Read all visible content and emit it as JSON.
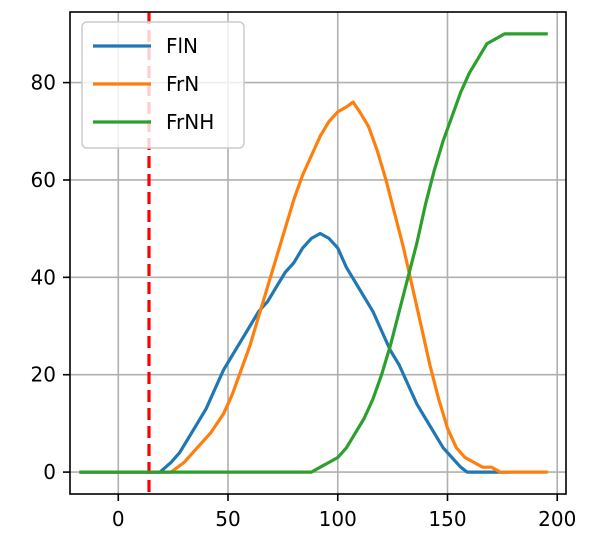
{
  "chart_data": {
    "type": "line",
    "title": "",
    "xlabel": "",
    "ylabel": "",
    "xlim": [
      -22,
      204
    ],
    "ylim": [
      -4.5,
      94.5
    ],
    "xticks": [
      0,
      50,
      100,
      150,
      200
    ],
    "yticks": [
      0,
      20,
      40,
      60,
      80
    ],
    "grid": true,
    "legend_position": "top-left",
    "vline": {
      "x": 14,
      "color": "#ff0000",
      "style": "dashed"
    },
    "series": [
      {
        "name": "FlN",
        "color": "#1f77b4",
        "x": [
          -17,
          19,
          24,
          28,
          32,
          36,
          40,
          44,
          48,
          52,
          56,
          60,
          64,
          68,
          72,
          76,
          80,
          84,
          88,
          92,
          96,
          100,
          104,
          108,
          112,
          116,
          120,
          124,
          128,
          132,
          136,
          140,
          144,
          148,
          152,
          156,
          159,
          178
        ],
        "values": [
          0,
          0,
          2,
          4,
          7,
          10,
          13,
          17,
          21,
          24,
          27,
          30,
          33,
          35,
          38,
          41,
          43,
          46,
          48,
          49,
          48,
          46,
          42,
          39,
          36,
          33,
          29,
          25,
          22,
          18,
          14,
          11,
          8,
          5,
          3,
          1,
          0,
          0
        ]
      },
      {
        "name": "FrN",
        "color": "#ff7f0e",
        "x": [
          -17,
          24,
          30,
          36,
          42,
          48,
          52,
          56,
          60,
          64,
          68,
          72,
          76,
          80,
          84,
          88,
          92,
          96,
          100,
          104,
          107,
          110,
          114,
          118,
          122,
          126,
          130,
          134,
          138,
          142,
          146,
          150,
          154,
          158,
          162,
          166,
          170,
          174,
          178,
          195
        ],
        "values": [
          0,
          0,
          2,
          5,
          8,
          12,
          16,
          21,
          26,
          32,
          38,
          44,
          50,
          56,
          61,
          65,
          69,
          72,
          74,
          75,
          76,
          74,
          71,
          66,
          60,
          53,
          46,
          38,
          30,
          22,
          15,
          9,
          5,
          3,
          2,
          1,
          1,
          0,
          0,
          0
        ]
      },
      {
        "name": "FrNH",
        "color": "#2ca02c",
        "x": [
          -17,
          88,
          92,
          96,
          100,
          104,
          108,
          112,
          116,
          120,
          124,
          128,
          132,
          136,
          140,
          144,
          148,
          152,
          156,
          160,
          164,
          168,
          172,
          176,
          180,
          195
        ],
        "values": [
          0,
          0,
          1,
          2,
          3,
          5,
          8,
          11,
          15,
          20,
          26,
          33,
          40,
          47,
          55,
          62,
          68,
          73,
          78,
          82,
          85,
          88,
          89,
          90,
          90,
          90
        ]
      }
    ]
  }
}
